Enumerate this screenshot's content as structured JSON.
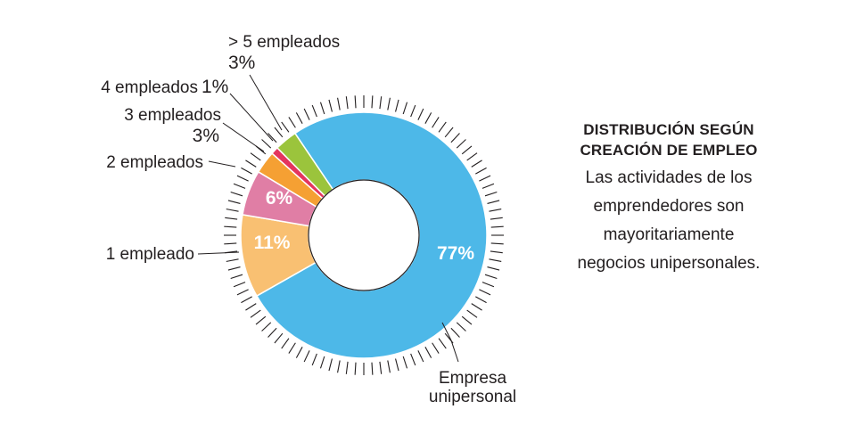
{
  "chart_data": {
    "type": "pie",
    "donut": true,
    "categories": [
      "Empresa unipersonal",
      "1 empleado",
      "2 empleados",
      "3 empleados",
      "4 empleados",
      "> 5 empleados"
    ],
    "values": [
      77,
      11,
      6,
      3,
      1,
      3
    ],
    "value_labels": [
      "77%",
      "11%",
      "6%",
      "3%",
      "1%",
      "3%"
    ],
    "colors": [
      "#4db8e8",
      "#f9c072",
      "#e07ea5",
      "#f5a033",
      "#e4355e",
      "#9bc43c"
    ],
    "labels": {
      "unipersonal_line1": "Empresa",
      "unipersonal_line2": "unipersonal",
      "uno": "1 empleado",
      "dos": "2 empleados",
      "tres": "3 empleados",
      "tres_pct": "3%",
      "cuatro": "4 empleados",
      "cuatro_pct": "1%",
      "cinco": "> 5 empleados",
      "cinco_pct": "3%"
    }
  },
  "sidebar": {
    "title_line1": "DISTRIBUCIÓN SEGÚN",
    "title_line2": "CREACIÓN DE EMPLEO",
    "text_line1": "Las actividades de los",
    "text_line2": "emprendedores son",
    "text_line3": "mayoritariamente",
    "text_line4": "negocios unipersonales."
  }
}
